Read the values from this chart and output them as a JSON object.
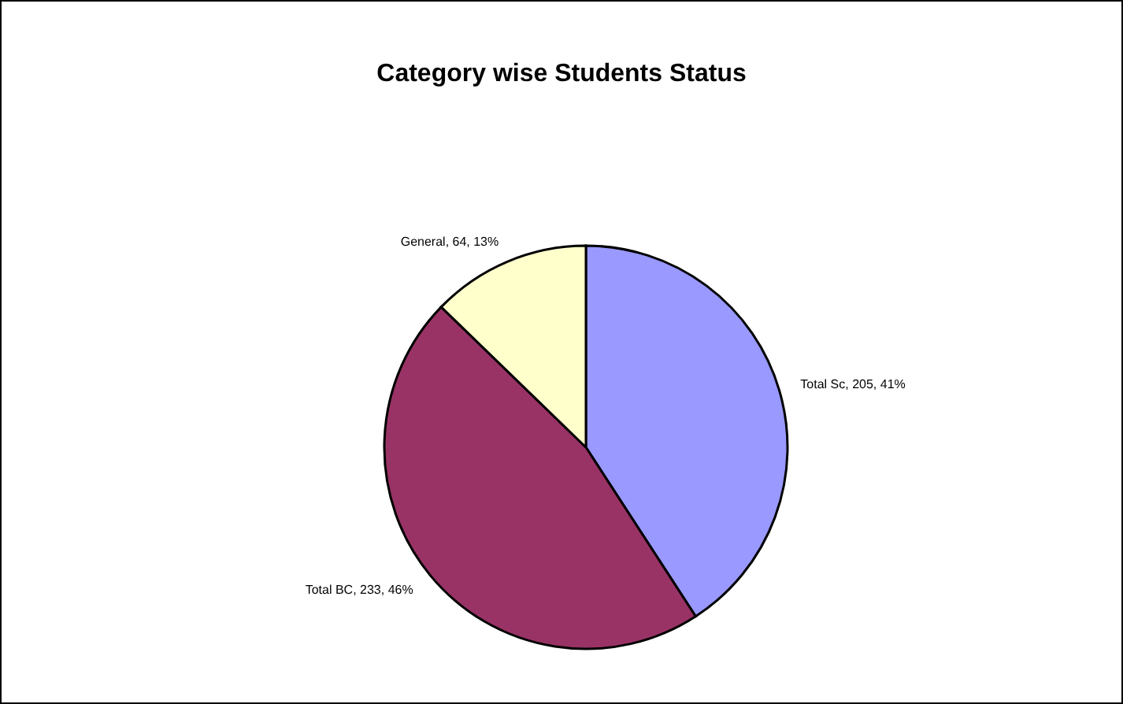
{
  "chart_data": {
    "type": "pie",
    "title": "Category wise Students Status",
    "categories": [
      "Total Sc",
      "Total BC",
      "General"
    ],
    "values": [
      205,
      233,
      64
    ],
    "value_labels": [
      ", 205, 41%",
      ", 233, 46%",
      ", 64, 13%"
    ],
    "colors": [
      "#9999ff",
      "#993366",
      "#ffffcc"
    ],
    "legend": false
  }
}
